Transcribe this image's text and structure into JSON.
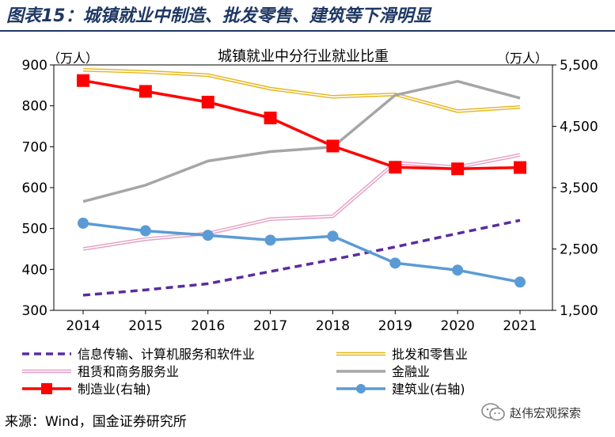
{
  "figure_title": "图表15：城镇就业中制造、批发零售、建筑等下滑明显",
  "source": "来源：Wind，国金证券研究所",
  "brand": "赵伟宏观探索",
  "colors": {
    "title_blue": "#1f3864",
    "info_tech": "#5b2c9f",
    "wholesale": "#e7b61c",
    "leasing": "#e6a0c4",
    "finance": "#a6a6a6",
    "manufacturing": "#ff0000",
    "construction": "#5b9bd5"
  },
  "chart_data": {
    "type": "line",
    "title": "城镇就业中分行业就业比重",
    "left_axis_unit": "（万人）",
    "right_axis_unit": "（万人）",
    "x": [
      "2014",
      "2015",
      "2016",
      "2017",
      "2018",
      "2019",
      "2020",
      "2021"
    ],
    "ylim_left": [
      300,
      900
    ],
    "yticks_left": [
      "300",
      "400",
      "500",
      "600",
      "700",
      "800",
      "900"
    ],
    "ylim_right": [
      1500,
      5500
    ],
    "yticks_right": [
      "1,500",
      "2,500",
      "3,500",
      "4,500",
      "5,500"
    ],
    "grid": false,
    "legend_position": "bottom",
    "series": [
      {
        "name": "信息传输、计算机服务和软件业",
        "axis": "left",
        "style": "dashed",
        "color_key": "info_tech",
        "values": [
          337,
          350,
          365,
          395,
          424,
          455,
          488,
          520
        ]
      },
      {
        "name": "批发和零售业",
        "axis": "left",
        "style": "double",
        "color_key": "wholesale",
        "values": [
          888,
          883,
          875,
          842,
          822,
          828,
          787,
          797
        ]
      },
      {
        "name": "租赁和商务服务业",
        "axis": "left",
        "style": "double",
        "color_key": "leasing",
        "values": [
          450,
          474,
          488,
          523,
          530,
          661,
          650,
          680
        ]
      },
      {
        "name": "金融业",
        "axis": "left",
        "style": "solid",
        "color_key": "finance",
        "values": [
          566,
          606,
          665,
          688,
          699,
          826,
          860,
          819
        ]
      },
      {
        "name": "制造业(右轴)",
        "axis": "right",
        "style": "solid-square",
        "color_key": "manufacturing",
        "values": [
          5245,
          5069,
          4894,
          4636,
          4178,
          3832,
          3806,
          3828
        ]
      },
      {
        "name": "建筑业(右轴)",
        "axis": "right",
        "style": "solid-circle",
        "color_key": "construction",
        "values": [
          2921,
          2796,
          2723,
          2644,
          2708,
          2270,
          2155,
          1961
        ]
      }
    ]
  }
}
